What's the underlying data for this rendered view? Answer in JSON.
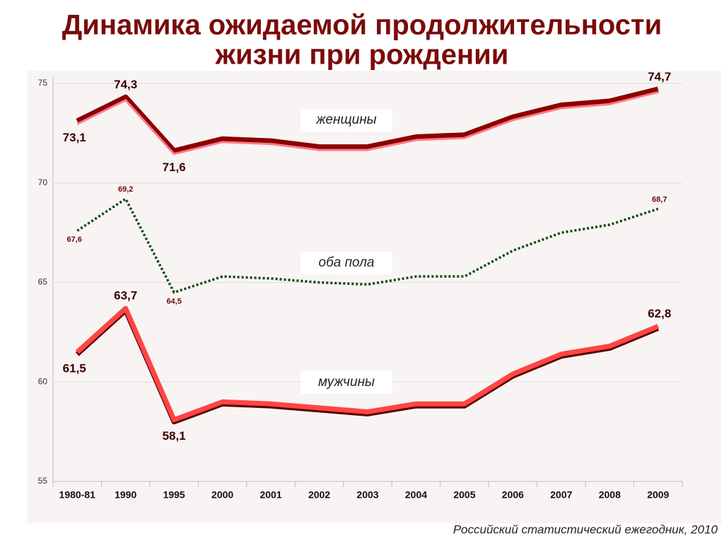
{
  "chart_data": {
    "type": "line",
    "title": [
      "Динамика ожидаемой продолжительности",
      "жизни при рождении"
    ],
    "source": "Российский статистический ежегодник, 2010",
    "categories": [
      "1980-81",
      "1990",
      "1995",
      "2000",
      "2001",
      "2002",
      "2003",
      "2004",
      "2005",
      "2006",
      "2007",
      "2008",
      "2009"
    ],
    "ylim": [
      55,
      75
    ],
    "yticks": [
      55,
      60,
      65,
      70,
      75
    ],
    "grid": true,
    "series": [
      {
        "name": "женщины",
        "color": "#8b0000",
        "style": "solid",
        "values": [
          73.1,
          74.3,
          71.6,
          72.2,
          72.1,
          71.8,
          71.8,
          72.3,
          72.4,
          73.3,
          73.9,
          74.1,
          74.7
        ],
        "value_labels": [
          "73,1",
          "74,3",
          "71,6",
          null,
          null,
          null,
          null,
          null,
          null,
          null,
          null,
          null,
          "74,7"
        ]
      },
      {
        "name": "оба пола",
        "color": "#0b4a0b",
        "style": "dotted",
        "values": [
          67.6,
          69.2,
          64.5,
          65.3,
          65.2,
          65.0,
          64.9,
          65.3,
          65.3,
          66.6,
          67.5,
          67.9,
          68.7
        ],
        "value_labels": [
          "67,6",
          "69,2",
          "64,5",
          null,
          null,
          null,
          null,
          null,
          null,
          null,
          null,
          null,
          "68,7"
        ]
      },
      {
        "name": "мужчины",
        "color": "#ff4545",
        "style": "solid",
        "values": [
          61.5,
          63.7,
          58.1,
          59.0,
          58.9,
          58.7,
          58.5,
          58.9,
          58.9,
          60.4,
          61.4,
          61.8,
          62.8
        ],
        "value_labels": [
          "61,5",
          "63,7",
          "58,1",
          null,
          null,
          null,
          null,
          null,
          null,
          null,
          null,
          null,
          "62,8"
        ]
      }
    ]
  }
}
